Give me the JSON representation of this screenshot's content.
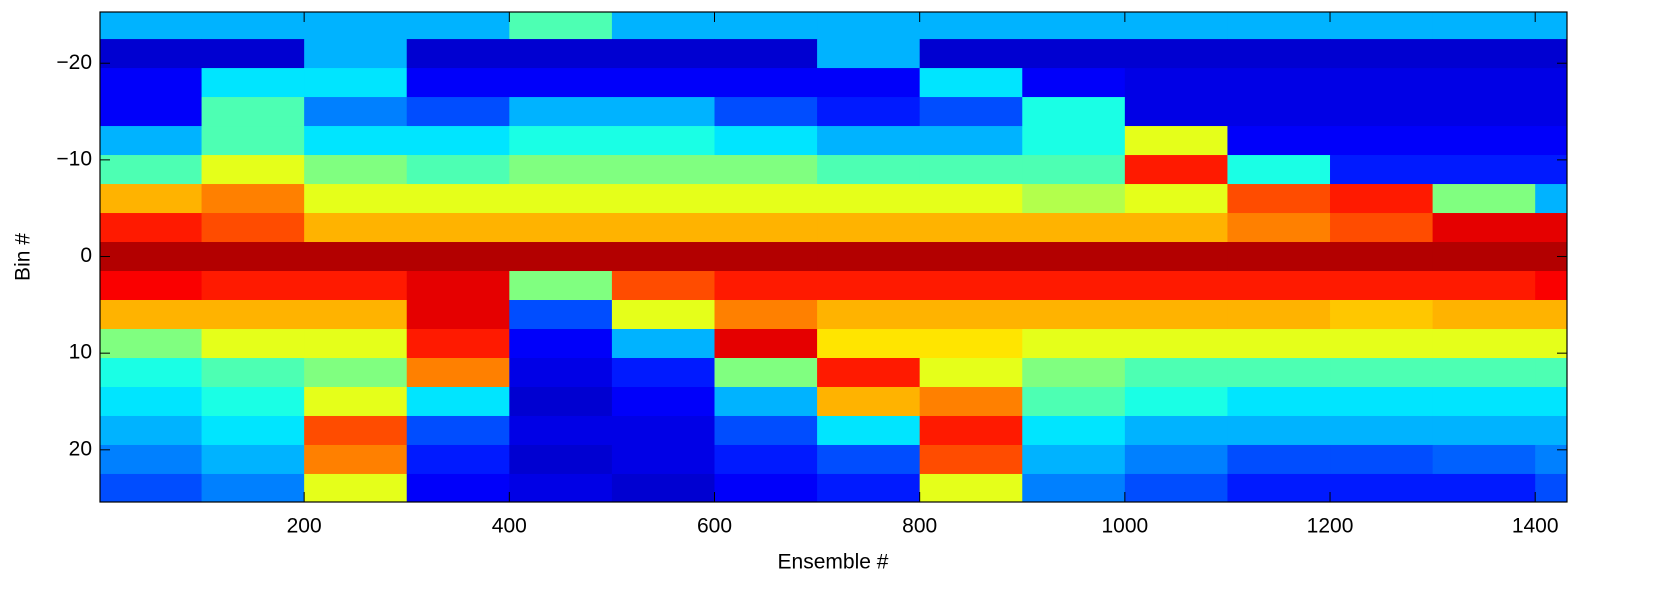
{
  "chart_data": {
    "type": "heatmap",
    "colormap": "jet",
    "x_label": "Ensemble #",
    "y_label": "Bin #",
    "xlim": [
      1,
      1431
    ],
    "ylim": [
      -25.3,
      25.4
    ],
    "y_reversed": true,
    "xticks": [
      200,
      400,
      600,
      800,
      1000,
      1200,
      1400
    ],
    "yticks": [
      {
        "value": -20,
        "label": "−20"
      },
      {
        "value": -10,
        "label": "−10"
      },
      0,
      10,
      20
    ],
    "x": [
      50,
      150,
      250,
      350,
      450,
      550,
      650,
      750,
      850,
      950,
      1050,
      1150,
      1250,
      1350,
      1450
    ],
    "y": [
      -24,
      -21,
      -18,
      -15,
      -12,
      -9,
      -6,
      -3,
      0,
      3,
      6,
      9,
      12,
      15,
      18,
      21,
      24
    ],
    "z": [
      [
        0.3,
        0.3,
        0.3,
        0.3,
        0.45,
        0.3,
        0.3,
        0.3,
        0.3,
        0.3,
        0.3,
        0.3,
        0.3,
        0.3,
        0.3
      ],
      [
        0.08,
        0.08,
        0.3,
        0.08,
        0.08,
        0.08,
        0.08,
        0.3,
        0.08,
        0.08,
        0.08,
        0.08,
        0.08,
        0.08,
        0.08
      ],
      [
        0.12,
        0.35,
        0.35,
        0.12,
        0.12,
        0.12,
        0.12,
        0.12,
        0.35,
        0.12,
        0.1,
        0.1,
        0.1,
        0.1,
        0.1
      ],
      [
        0.12,
        0.45,
        0.25,
        0.2,
        0.3,
        0.3,
        0.2,
        0.15,
        0.2,
        0.4,
        0.1,
        0.1,
        0.1,
        0.1,
        0.1
      ],
      [
        0.3,
        0.45,
        0.35,
        0.35,
        0.4,
        0.4,
        0.35,
        0.3,
        0.3,
        0.4,
        0.6,
        0.12,
        0.12,
        0.12,
        0.12
      ],
      [
        0.45,
        0.6,
        0.5,
        0.45,
        0.5,
        0.5,
        0.5,
        0.45,
        0.45,
        0.45,
        0.85,
        0.4,
        0.15,
        0.15,
        0.15
      ],
      [
        0.7,
        0.75,
        0.6,
        0.6,
        0.6,
        0.6,
        0.6,
        0.6,
        0.6,
        0.55,
        0.6,
        0.8,
        0.85,
        0.5,
        0.3
      ],
      [
        0.85,
        0.8,
        0.7,
        0.7,
        0.7,
        0.7,
        0.7,
        0.7,
        0.7,
        0.7,
        0.7,
        0.75,
        0.8,
        0.9,
        0.9
      ],
      [
        0.95,
        0.95,
        0.95,
        0.95,
        0.95,
        0.95,
        0.95,
        0.95,
        0.95,
        0.95,
        0.95,
        0.95,
        0.95,
        0.95,
        0.95
      ],
      [
        0.88,
        0.85,
        0.85,
        0.9,
        0.5,
        0.8,
        0.85,
        0.85,
        0.85,
        0.85,
        0.85,
        0.85,
        0.85,
        0.85,
        0.88
      ],
      [
        0.7,
        0.7,
        0.7,
        0.9,
        0.2,
        0.6,
        0.75,
        0.7,
        0.7,
        0.7,
        0.7,
        0.7,
        0.68,
        0.7,
        0.7
      ],
      [
        0.5,
        0.6,
        0.6,
        0.85,
        0.12,
        0.3,
        0.9,
        0.65,
        0.65,
        0.6,
        0.6,
        0.6,
        0.6,
        0.6,
        0.6
      ],
      [
        0.4,
        0.45,
        0.5,
        0.75,
        0.1,
        0.15,
        0.5,
        0.85,
        0.6,
        0.5,
        0.45,
        0.45,
        0.45,
        0.45,
        0.45
      ],
      [
        0.35,
        0.4,
        0.6,
        0.35,
        0.08,
        0.12,
        0.3,
        0.7,
        0.75,
        0.45,
        0.4,
        0.35,
        0.35,
        0.35,
        0.35
      ],
      [
        0.3,
        0.35,
        0.8,
        0.2,
        0.1,
        0.1,
        0.2,
        0.35,
        0.85,
        0.35,
        0.3,
        0.3,
        0.3,
        0.3,
        0.3
      ],
      [
        0.25,
        0.3,
        0.75,
        0.15,
        0.08,
        0.1,
        0.15,
        0.2,
        0.8,
        0.3,
        0.25,
        0.2,
        0.2,
        0.22,
        0.25
      ],
      [
        0.2,
        0.25,
        0.6,
        0.12,
        0.1,
        0.08,
        0.12,
        0.15,
        0.6,
        0.25,
        0.2,
        0.15,
        0.15,
        0.15,
        0.2
      ]
    ]
  }
}
